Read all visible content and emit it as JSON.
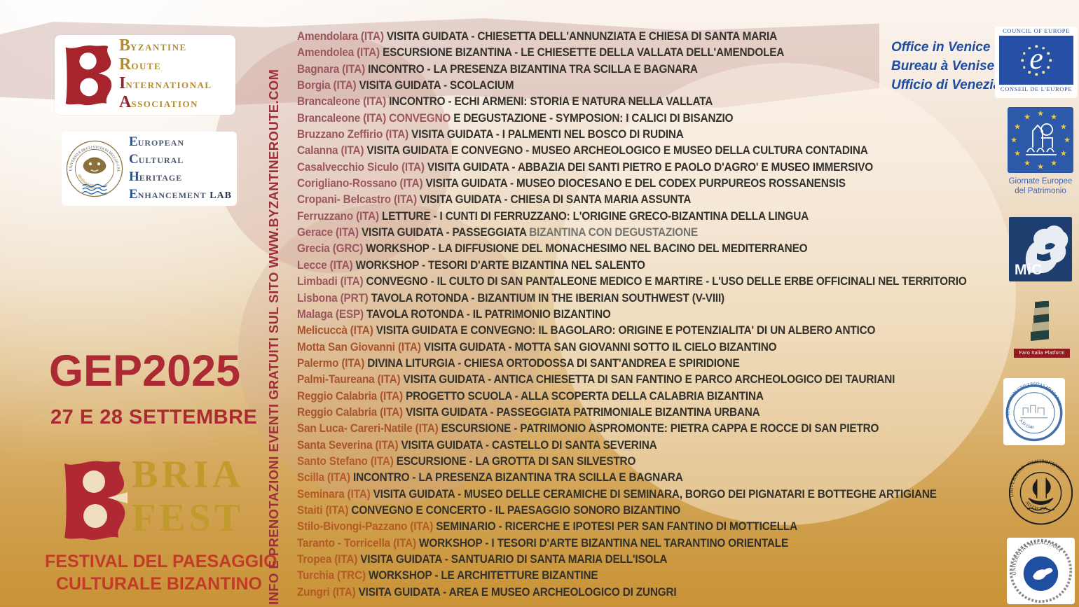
{
  "palette": {
    "accent_red": "#ac2a33",
    "festival_red": "#c23b28",
    "gold": "#c09a2c",
    "sidebar_red": "#9c2f38",
    "place_rose": "#9c5660",
    "place_mid": "#a8542f",
    "place_orange": "#b45a24",
    "desc_dark": "#33312c",
    "desc_muted": "#74746e",
    "logo_blue": "#1c4da0"
  },
  "icons": {
    "star": "★"
  },
  "bria_association": {
    "words": [
      {
        "initial": "B",
        "rest": "YZANTINE",
        "red": false
      },
      {
        "initial": "R",
        "rest": "OUTE",
        "red": false
      },
      {
        "initial": "I",
        "rest": "NTERNATIONAL",
        "red": true
      },
      {
        "initial": "A",
        "rest": "SSOCIATION",
        "red": true
      }
    ]
  },
  "eche_lab": {
    "seal_ring_text": "UNIVERSITÀ DEGLI STUDI DI REGGIO CALABRIA",
    "seal_bottom_text": "Mediterranea",
    "words": [
      {
        "initial": "E",
        "rest": "UROPEAN"
      },
      {
        "initial": "C",
        "rest": "ULTURAL"
      },
      {
        "initial": "H",
        "rest": "ERITAGE"
      },
      {
        "initial": "E",
        "rest": "NHANCEMENT"
      }
    ],
    "lab": "LAB"
  },
  "event_title": "GEP2025",
  "event_dates": "27 E 28 SETTEMBRE",
  "bria_fest": {
    "line1": "BRIA",
    "line2": "FEST"
  },
  "festival_subtitle_line1": "FESTIVAL DEL PAESAGGIO",
  "festival_subtitle_line2": "CULTURALE BIZANTINO",
  "info_sidebar": "INFO E PRENOTAZIONI  EVENTI GRATUITI SUL SITO WWW.BYZANTINEROUTE.COM",
  "events": [
    {
      "place": "Amendolara",
      "code": "ITA",
      "desc": "VISITA GUIDATA - CHIESETTA DELL'ANNUNZIATA E CHIESA DI SANTA MARIA"
    },
    {
      "place": "Amendolea",
      "code": "ITA",
      "desc": "ESCURSIONE BIZANTINA - LE CHIESETTE DELLA VALLATA DELL'AMENDOLEA"
    },
    {
      "place": "Bagnara",
      "code": "ITA",
      "desc": "INCONTRO - LA PRESENZA BIZANTINA TRA SCILLA E BAGNARA"
    },
    {
      "place": "Borgia",
      "code": "ITA",
      "desc": "VISITA GUIDATA - SCOLACIUM"
    },
    {
      "place": "Brancaleone",
      "code": "ITA",
      "desc": "INCONTRO - ECHI ARMENI: STORIA E NATURA NELLA VALLATA"
    },
    {
      "place": "Brancaleone",
      "code": "ITA",
      "highlight": "CONVEGNO",
      "desc": "E DEGUSTAZIONE - SYMPOSION: I CALICI DI BISANZIO"
    },
    {
      "place": "Bruzzano Zeffirio",
      "code": "ITA",
      "desc": "VISITA GUIDATA - I PALMENTI NEL BOSCO DI RUDINA"
    },
    {
      "place": "Calanna",
      "code": "ITA",
      "desc": "VISITA GUIDATA E CONVEGNO - MUSEO ARCHEOLOGICO E MUSEO DELLA CULTURA CONTADINA"
    },
    {
      "place": "Casalvecchio Siculo",
      "code": "ITA",
      "desc": "VISITA GUIDATA - ABBAZIA DEI SANTI PIETRO E PAOLO D'AGRO' E MUSEO IMMERSIVO"
    },
    {
      "place": "Corigliano-Rossano",
      "code": "ITA",
      "desc": "VISITA GUIDATA - MUSEO DIOCESANO E DEL CODEX PURPUREOS ROSSANENSIS"
    },
    {
      "place": "Cropani- Belcastro",
      "code": "ITA",
      "desc": "VISITA GUIDATA - CHIESA DI SANTA MARIA ASSUNTA"
    },
    {
      "place": "Ferruzzano",
      "code": "ITA",
      "desc": "LETTURE - I CUNTI DI FERRUZZANO: L'ORIGINE GRECO-BIZANTINA DELLA LINGUA"
    },
    {
      "place": "Gerace",
      "code": "ITA",
      "desc": "VISITA GUIDATA - PASSEGGIATA",
      "desc_muted": "BIZANTINA CON DEGUSTAZIONE"
    },
    {
      "place": "Grecia",
      "code": "GRC",
      "desc": "WORKSHOP - LA DIFFUSIONE DEL MONACHESIMO NEL BACINO DEL MEDITERRANEO"
    },
    {
      "place": "Lecce",
      "code": "ITA",
      "desc": "WORKSHOP - TESORI D'ARTE BIZANTINA NEL SALENTO"
    },
    {
      "place": "Limbadi",
      "code": "ITA",
      "desc": "CONVEGNO - IL CULTO DI SAN PANTALEONE MEDICO E MARTIRE - L'USO DELLE ERBE OFFICINALI NEL TERRITORIO"
    },
    {
      "place": "Lisbona",
      "code": "PRT",
      "desc": "TAVOLA ROTONDA - BIZANTIUM IN THE IBERIAN SOUTHWEST (V-VIII)"
    },
    {
      "place": "Malaga",
      "code": "ESP",
      "desc": "TAVOLA ROTONDA - IL PATRIMONIO BIZANTINO"
    },
    {
      "place": "Melicuccà",
      "code": "ITA",
      "desc": "VISITA GUIDATA E CONVEGNO: IL BAGOLARO: ORIGINE E POTENZIALITA' DI UN ALBERO ANTICO"
    },
    {
      "place": "Motta San Giovanni",
      "code": "ITA",
      "desc": "VISITA GUIDATA - MOTTA SAN GIOVANNI SOTTO IL CIELO BIZANTINO"
    },
    {
      "place": "Palermo",
      "code": "ITA",
      "desc": "DIVINA LITURGIA - CHIESA ORTODOSSA DI SANT'ANDREA E SPIRIDIONE"
    },
    {
      "place": "Palmi-Taureana",
      "code": "ITA",
      "desc": "VISITA GUIDATA - ANTICA CHIESETTA DI SAN FANTINO E PARCO ARCHEOLOGICO DEI TAURIANI"
    },
    {
      "place": "Reggio Calabria",
      "code": "ITA",
      "desc": "PROGETTO SCUOLA - ALLA SCOPERTA DELLA CALABRIA BIZANTINA"
    },
    {
      "place": "Reggio Calabria",
      "code": "ITA",
      "desc": "VISITA GUIDATA - PASSEGGIATA PATRIMONIALE BIZANTINA URBANA"
    },
    {
      "place": "San Luca- Careri-Natile",
      "code": "ITA",
      "desc": "ESCURSIONE - PATRIMONIO ASPROMONTE: PIETRA CAPPA E ROCCE DI SAN PIETRO"
    },
    {
      "place": "Santa Severina",
      "code": "ITA",
      "desc": "VISITA GUIDATA - CASTELLO DI SANTA SEVERINA"
    },
    {
      "place": "Santo Stefano",
      "code": "ITA",
      "desc": "ESCURSIONE - LA GROTTA DI SAN SILVESTRO"
    },
    {
      "place": "Scilla",
      "code": "ITA",
      "desc": "INCONTRO - LA PRESENZA BIZANTINA TRA SCILLA E BAGNARA"
    },
    {
      "place": "Seminara",
      "code": "ITA",
      "desc": "VISITA GUIDATA - MUSEO DELLE CERAMICHE DI SEMINARA, BORGO DEI PIGNATARI E BOTTEGHE ARTIGIANE"
    },
    {
      "place": "Staiti",
      "code": "ITA",
      "desc": "CONVEGNO E CONCERTO - IL PAESAGGIO SONORO BIZANTINO"
    },
    {
      "place": "Stilo-Bivongi-Pazzano",
      "code": "ITA",
      "desc": "SEMINARIO - RICERCHE E IPOTESI PER SAN FANTINO DI MOTTICELLA"
    },
    {
      "place": "Taranto - Torricella",
      "code": "ITA",
      "desc": "WORKSHOP - I TESORI D'ARTE BIZANTINA NEL TARANTINO ORIENTALE"
    },
    {
      "place": "Tropea",
      "code": "ITA",
      "desc": "VISITA GUIDATA - SANTUARIO DI SANTA MARIA DELL'ISOLA"
    },
    {
      "place": "Turchia",
      "code": "TRC",
      "desc": " WORKSHOP - LE ARCHITETTURE BIZANTINE"
    },
    {
      "place": "Zungri",
      "code": "ITA",
      "desc": "VISITA GUIDATA - AREA E MUSEO ARCHEOLOGICO DI ZUNGRI"
    }
  ],
  "right_logos": {
    "venice_office": {
      "lines": [
        "Office in Venice",
        "Bureau à Venise",
        "Ufficio di Venezia"
      ]
    },
    "council_of_europe": {
      "top": "COUNCIL OF EUROPE",
      "e_glyph": "e",
      "bottom": "CONSEIL DE L'EUROPE"
    },
    "giornate": {
      "caption_line1": "Giornate Europee",
      "caption_line2": "del Patrimonio"
    },
    "mic": {
      "label": "MiC"
    },
    "faro": {
      "label": "Faro Italia Platform"
    },
    "messina": {
      "ring_text": "STUDIORUM UNIVERSITAS MESSANAE",
      "year": "A.D.1548"
    },
    "lisbon": {
      "ring_text": "UNIVERSITAS · OLISIPONENSIS",
      "motto": "AD·LVCEM"
    },
    "malaga": {
      "ring_text": "UNIVERSITAS  MALACITANA"
    }
  }
}
